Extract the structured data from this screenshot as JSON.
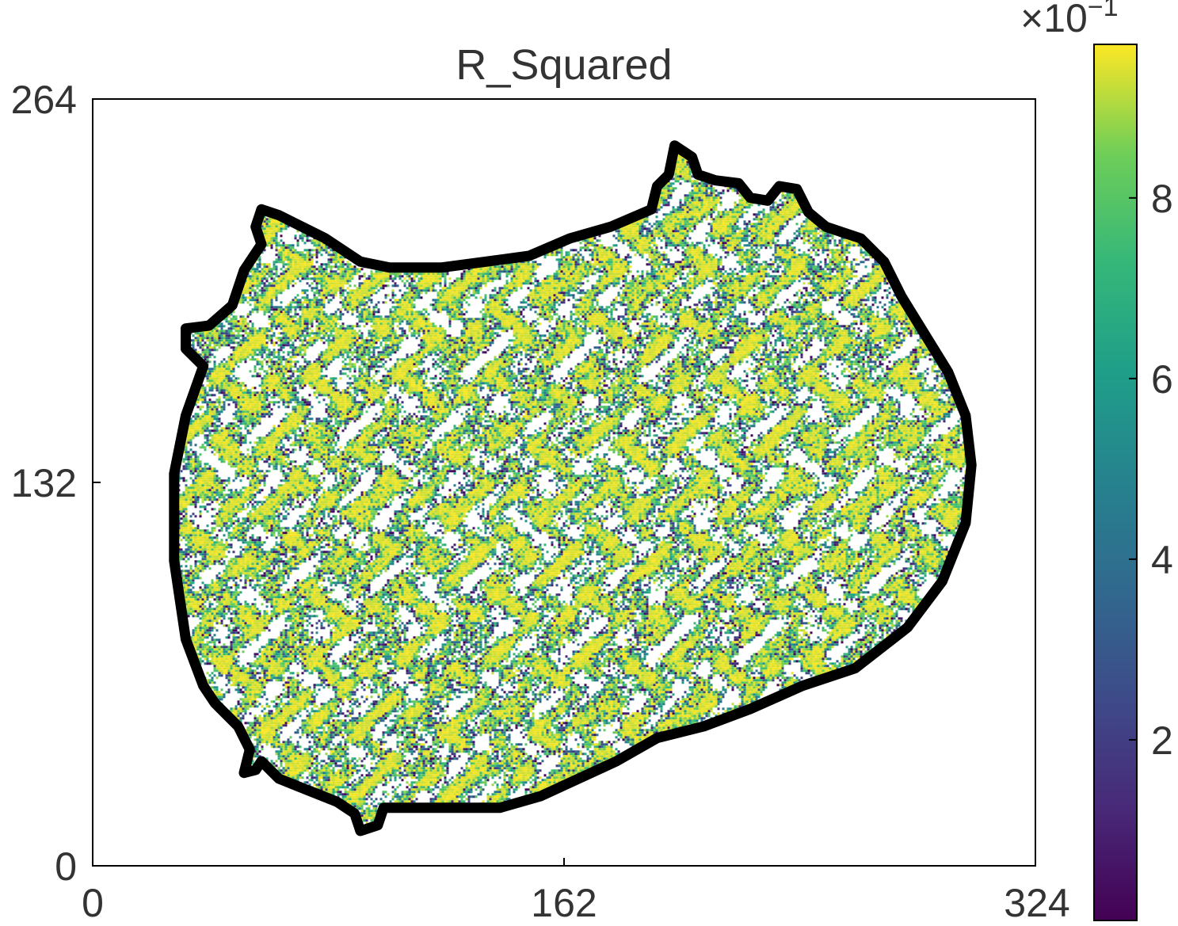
{
  "chart_data": {
    "type": "heatmap",
    "title": "R_Squared",
    "xlabel": "",
    "ylabel": "",
    "x_ticks": [
      0,
      162,
      324
    ],
    "y_ticks": [
      0,
      132,
      264
    ],
    "xlim": [
      0,
      324
    ],
    "ylim": [
      0,
      264
    ],
    "colormap": "viridis",
    "colorbar": {
      "multiplier_label": "×10",
      "multiplier_exponent": "−1",
      "ticks": [
        2,
        4,
        6,
        8
      ],
      "range": [
        0,
        9.7
      ],
      "placement": "right"
    },
    "mask_outline_color": "#000000",
    "region_boundary_data_coords": [
      [
        200,
        248
      ],
      [
        206,
        244
      ],
      [
        208,
        238
      ],
      [
        214,
        236
      ],
      [
        222,
        235
      ],
      [
        226,
        230
      ],
      [
        232,
        229
      ],
      [
        236,
        234
      ],
      [
        242,
        233
      ],
      [
        246,
        225
      ],
      [
        252,
        220
      ],
      [
        264,
        216
      ],
      [
        272,
        208
      ],
      [
        278,
        196
      ],
      [
        286,
        183
      ],
      [
        294,
        170
      ],
      [
        300,
        155
      ],
      [
        302,
        138
      ],
      [
        300,
        118
      ],
      [
        292,
        98
      ],
      [
        280,
        82
      ],
      [
        262,
        68
      ],
      [
        244,
        62
      ],
      [
        226,
        54
      ],
      [
        210,
        48
      ],
      [
        194,
        44
      ],
      [
        180,
        36
      ],
      [
        154,
        24
      ],
      [
        140,
        20
      ],
      [
        114,
        20
      ],
      [
        100,
        20
      ],
      [
        98,
        14
      ],
      [
        92,
        12
      ],
      [
        90,
        18
      ],
      [
        84,
        22
      ],
      [
        74,
        26
      ],
      [
        64,
        30
      ],
      [
        58,
        36
      ],
      [
        56,
        33
      ],
      [
        52,
        32
      ],
      [
        54,
        40
      ],
      [
        50,
        48
      ],
      [
        42,
        56
      ],
      [
        38,
        62
      ],
      [
        32,
        78
      ],
      [
        28,
        105
      ],
      [
        28,
        135
      ],
      [
        32,
        155
      ],
      [
        38,
        172
      ],
      [
        32,
        178
      ],
      [
        32,
        185
      ],
      [
        40,
        186
      ],
      [
        48,
        193
      ],
      [
        52,
        205
      ],
      [
        58,
        214
      ],
      [
        56,
        220
      ],
      [
        58,
        226
      ],
      [
        64,
        224
      ],
      [
        72,
        220
      ],
      [
        80,
        216
      ],
      [
        92,
        208
      ],
      [
        102,
        206
      ],
      [
        120,
        206
      ],
      [
        150,
        210
      ],
      [
        164,
        216
      ],
      [
        178,
        220
      ],
      [
        192,
        226
      ],
      [
        194,
        234
      ],
      [
        198,
        238
      ]
    ]
  }
}
